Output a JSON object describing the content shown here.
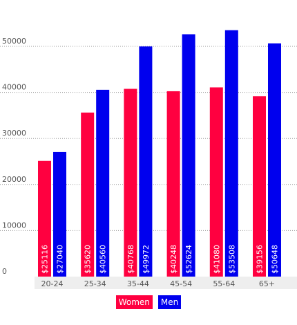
{
  "chart_data": {
    "type": "bar",
    "categories": [
      "20-24",
      "25-34",
      "35-44",
      "45-54",
      "55-64",
      "65+"
    ],
    "series": [
      {
        "name": "Women",
        "color": "#ff0040",
        "values": [
          25116,
          35620,
          40768,
          40248,
          41080,
          39156
        ]
      },
      {
        "name": "Men",
        "color": "#0000ee",
        "values": [
          27040,
          40560,
          49972,
          52624,
          53508,
          50648
        ]
      }
    ],
    "data_labels": {
      "Women": [
        "$25116",
        "$35620",
        "$40768",
        "$40248",
        "$41080",
        "$39156"
      ],
      "Men": [
        "$27040",
        "$40560",
        "$49972",
        "$52624",
        "$53508",
        "$50648"
      ]
    },
    "y_ticks": [
      "0",
      "10000",
      "20000",
      "30000",
      "40000",
      "50000"
    ],
    "ylim": [
      0,
      55000
    ],
    "title": "",
    "xlabel": "",
    "ylabel": "",
    "grid": true,
    "legend_position": "bottom-center"
  }
}
